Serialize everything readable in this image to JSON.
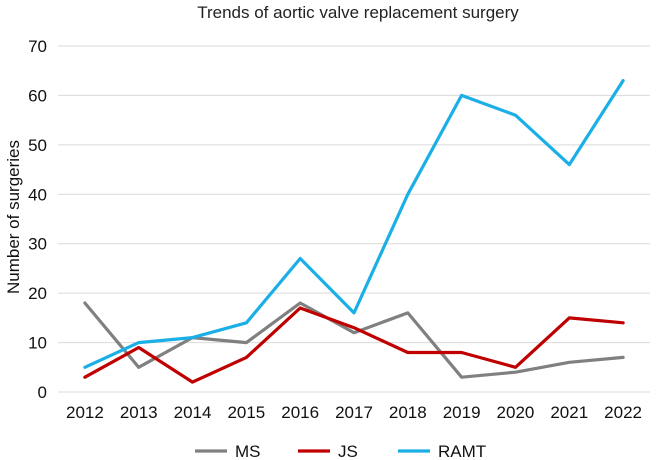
{
  "chart_data": {
    "type": "line",
    "title": "Trends of aortic valve replacement surgery",
    "xlabel": "",
    "ylabel": "Number of surgeries",
    "ylim": [
      0,
      70
    ],
    "yticks": [
      0,
      10,
      20,
      30,
      40,
      50,
      60,
      70
    ],
    "grid": true,
    "legend_position": "bottom",
    "categories": [
      "2012",
      "2013",
      "2014",
      "2015",
      "2016",
      "2017",
      "2018",
      "2019",
      "2020",
      "2021",
      "2022"
    ],
    "series": [
      {
        "name": "MS",
        "color": "#808080",
        "values": [
          18,
          5,
          11,
          10,
          18,
          12,
          16,
          3,
          4,
          6,
          7
        ]
      },
      {
        "name": "JS",
        "color": "#c00000",
        "values": [
          3,
          9,
          2,
          7,
          17,
          13,
          8,
          8,
          5,
          15,
          14
        ]
      },
      {
        "name": "RAMT",
        "color": "#1aafe6",
        "values": [
          5,
          10,
          11,
          14,
          27,
          16,
          40,
          60,
          56,
          46,
          63
        ]
      }
    ]
  }
}
